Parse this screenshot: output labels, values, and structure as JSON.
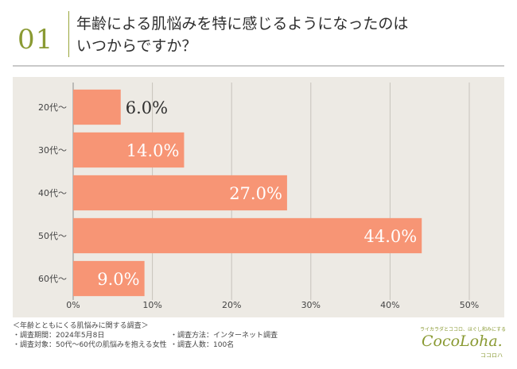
{
  "header": {
    "number": "01",
    "title": "年齢による肌悩みを特に感じるようになったのは\nいつからですか？"
  },
  "chart_data": {
    "type": "bar",
    "orientation": "horizontal",
    "categories": [
      "20代〜",
      "30代〜",
      "40代〜",
      "50代〜",
      "60代〜"
    ],
    "values": [
      6.0,
      14.0,
      27.0,
      44.0,
      9.0
    ],
    "value_labels": [
      "6.0%",
      "14.0%",
      "27.0%",
      "44.0%",
      "9.0%"
    ],
    "x_ticks": [
      "0%",
      "10%",
      "20%",
      "30%",
      "40%",
      "50%"
    ],
    "xlim": [
      0,
      50
    ],
    "grid": true,
    "bar_color": "#f79575",
    "title": "年齢による肌悩みを特に感じるようになったのは\nいつからですか？",
    "xlabel": "",
    "ylabel": ""
  },
  "footer": {
    "survey_title": "＜年齢とともにくる肌悩みに関する調査＞",
    "period": "・調査期間：2024年5月8日",
    "method": "・調査方法：インターネット調査",
    "target": "・調査対象：50代〜60代の肌悩みを抱える女性",
    "count": "・調査人数：100名"
  },
  "logo": {
    "tagline": "ライカラダとココロ、ほぐし和みにする",
    "name": "CocoLoha.",
    "kana": "ココロハ"
  },
  "colors": {
    "accent": "#8a9a33",
    "bar": "#f79575",
    "background_panel": "#edeae4"
  }
}
